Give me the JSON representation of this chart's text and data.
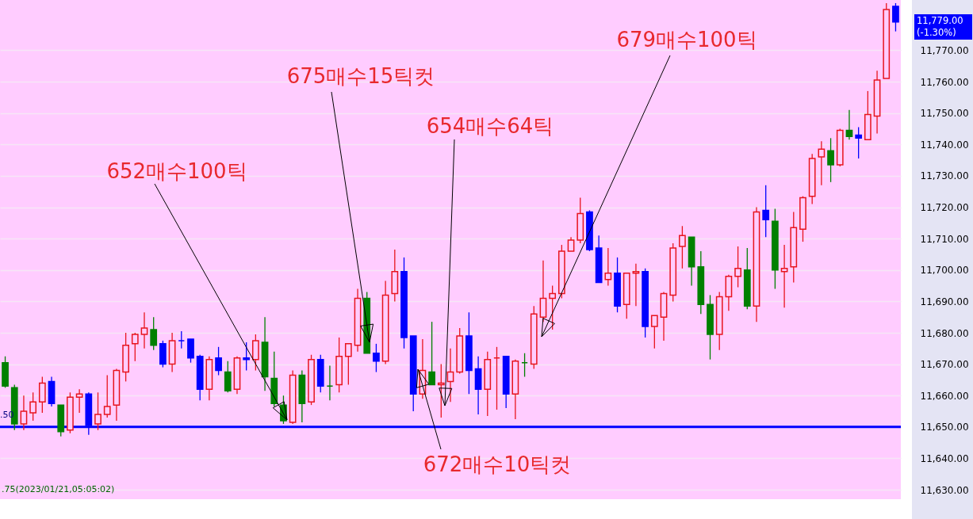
{
  "chart_data": {
    "type": "candlestick",
    "categories": [
      null,
      null,
      null,
      null,
      null,
      null,
      null,
      null,
      null,
      null,
      null,
      null,
      null,
      null,
      null,
      null,
      null,
      null,
      null,
      null,
      null,
      null,
      null,
      null,
      null,
      null,
      null,
      null,
      null,
      null,
      null,
      null,
      null,
      null,
      null,
      null,
      null,
      null,
      null,
      null,
      null,
      null,
      null,
      null,
      null,
      null,
      null,
      null,
      null,
      null,
      null,
      null,
      null,
      null,
      null,
      null,
      null,
      null,
      null,
      null,
      null,
      null,
      null,
      null,
      null,
      null,
      null,
      null,
      null,
      null,
      null,
      null,
      null,
      null,
      null,
      null,
      null,
      null,
      null,
      null,
      null,
      null,
      null,
      null,
      null,
      null,
      null,
      null,
      null,
      null,
      null,
      null,
      null,
      null,
      null,
      null,
      null
    ],
    "ohlc": [
      [
        11670.5,
        11672.5,
        11662.5,
        11663
      ],
      [
        11662.5,
        11663.5,
        11649,
        11651
      ],
      [
        11651,
        11660,
        11649,
        11655
      ],
      [
        11654.5,
        11661,
        11652,
        11658
      ],
      [
        11658,
        11666,
        11654.5,
        11664
      ],
      [
        11664.5,
        11666,
        11656.5,
        11657.5
      ],
      [
        11657,
        11657,
        11647,
        11648.5
      ],
      [
        11649,
        11661,
        11648,
        11659.5
      ],
      [
        11659.5,
        11662,
        11654.5,
        11660.5
      ],
      [
        11660.5,
        11661,
        11647.5,
        11650.5
      ],
      [
        11651,
        11661,
        11649,
        11654
      ],
      [
        11654,
        11666.5,
        11653,
        11656.5
      ],
      [
        11657,
        11668.5,
        11652,
        11668
      ],
      [
        11667.5,
        11680,
        11664.5,
        11676
      ],
      [
        11676.5,
        11680,
        11671,
        11679.5
      ],
      [
        11679.5,
        11686.5,
        11675,
        11681.5
      ],
      [
        11681,
        11685,
        11674.5,
        11676
      ],
      [
        11676.5,
        11677.5,
        11669,
        11670
      ],
      [
        11670,
        11680,
        11667.5,
        11677.5
      ],
      [
        11677.5,
        11680.5,
        11675,
        11677.5
      ],
      [
        11678,
        11678,
        11670.5,
        11672
      ],
      [
        11672.5,
        11673,
        11658.5,
        11662
      ],
      [
        11662,
        11672.5,
        11658.5,
        11671.5
      ],
      [
        11672,
        11675.5,
        11666.5,
        11668
      ],
      [
        11667.5,
        11671,
        11661,
        11661.5
      ],
      [
        11662,
        11672.5,
        11660.5,
        11672
      ],
      [
        11672,
        11677,
        11668,
        11671.5
      ],
      [
        11671.5,
        11679.5,
        11668,
        11677.5
      ],
      [
        11677,
        11685,
        11661.5,
        11666
      ],
      [
        11665.5,
        11674,
        11656.5,
        11657.5
      ],
      [
        11657,
        11660,
        11651,
        11652
      ],
      [
        11651.5,
        11668,
        11651,
        11666.5
      ],
      [
        11666.5,
        11668,
        11651.5,
        11657.5
      ],
      [
        11658,
        11673,
        11657,
        11671.5
      ],
      [
        11671.5,
        11673,
        11661,
        11663
      ],
      [
        11663,
        11669.5,
        11658.5,
        11663
      ],
      [
        11663.5,
        11678.5,
        11661,
        11672.5
      ],
      [
        11672.5,
        11676.5,
        11663.5,
        11676.5
      ],
      [
        11676,
        11694,
        11674,
        11691
      ],
      [
        11691,
        11693,
        11673.5,
        11673.5
      ],
      [
        11673.5,
        11676.5,
        11667.5,
        11671
      ],
      [
        11671,
        11696.5,
        11670,
        11692
      ],
      [
        11692.5,
        11706.5,
        11690,
        11699.5
      ],
      [
        11699.5,
        11704,
        11675,
        11678.5
      ],
      [
        11679,
        11679,
        11655,
        11660.5
      ],
      [
        11660.5,
        11678,
        11659,
        11668
      ],
      [
        11667.5,
        11683.5,
        11663.5,
        11663.5
      ],
      [
        11663.5,
        11670,
        11653,
        11664
      ],
      [
        11664.5,
        11675,
        11658,
        11667.5
      ],
      [
        11667.5,
        11681.5,
        11667,
        11679
      ],
      [
        11679,
        11686.5,
        11660.5,
        11668
      ],
      [
        11668.5,
        11672.5,
        11654,
        11662
      ],
      [
        11662,
        11674,
        11653.5,
        11671.5
      ],
      [
        11672,
        11675.5,
        11655.5,
        11672
      ],
      [
        11672.5,
        11672.5,
        11656,
        11660.5
      ],
      [
        11660.5,
        11671.5,
        11652.5,
        11671
      ],
      [
        11670.5,
        11673.5,
        11666,
        11670.5
      ],
      [
        11670,
        11688.5,
        11668.5,
        11686
      ],
      [
        11685,
        11703,
        11683.5,
        11691
      ],
      [
        11691,
        11695,
        11681,
        11692.5
      ],
      [
        11692.5,
        11708,
        11691,
        11706
      ],
      [
        11706,
        11710.5,
        11706,
        11709.5
      ],
      [
        11709.5,
        11723,
        11708.5,
        11718
      ],
      [
        11718.5,
        11719,
        11706,
        11706.5
      ],
      [
        11707,
        11711,
        11696,
        11696
      ],
      [
        11697,
        11707,
        11695,
        11699
      ],
      [
        11699,
        11704,
        11686.5,
        11688.5
      ],
      [
        11689,
        11699,
        11684.5,
        11699
      ],
      [
        11699,
        11702,
        11688.5,
        11699.5
      ],
      [
        11699.5,
        11700.5,
        11678.5,
        11682
      ],
      [
        11682,
        11685.5,
        11675,
        11685.5
      ],
      [
        11685,
        11693,
        11677.5,
        11692.5
      ],
      [
        11692,
        11708.5,
        11690,
        11707
      ],
      [
        11707.5,
        11714,
        11700.5,
        11711
      ],
      [
        11710.5,
        11710.5,
        11695,
        11701
      ],
      [
        11701,
        11706,
        11686,
        11689
      ],
      [
        11689,
        11692,
        11671.5,
        11679.5
      ],
      [
        11679.5,
        11693,
        11674.5,
        11691.5
      ],
      [
        11691.5,
        11698.5,
        11687,
        11698
      ],
      [
        11698,
        11707.5,
        11694.5,
        11700.5
      ],
      [
        11700,
        11707,
        11687.5,
        11688.5
      ],
      [
        11688.5,
        11720,
        11683.5,
        11718.5
      ],
      [
        11719,
        11727,
        11710.5,
        11716
      ],
      [
        11715.5,
        11719.5,
        11694,
        11700
      ],
      [
        11699.5,
        11708,
        11688,
        11700.5
      ],
      [
        11701,
        11718.5,
        11696,
        11713.5
      ],
      [
        11713,
        11723.5,
        11709,
        11723
      ],
      [
        11723.5,
        11737,
        11721,
        11735.5
      ],
      [
        11736,
        11741,
        11727,
        11738.5
      ],
      [
        11738,
        11742,
        11728,
        11733.5
      ],
      [
        11733.5,
        11745,
        11733,
        11744.5
      ],
      [
        11744.5,
        11751,
        11741.5,
        11742.5
      ],
      [
        11743,
        11745.5,
        11735.5,
        11742
      ],
      [
        11741.5,
        11757,
        11741.5,
        11749.5
      ],
      [
        11749,
        11763.5,
        11743.5,
        11760.5
      ],
      [
        11761,
        11785,
        11761,
        11783
      ],
      [
        11784,
        11785,
        11776,
        11779
      ]
    ],
    "colors": [
      "#008000",
      "#008000",
      "#e8141e",
      "#e8141e",
      "#e8141e",
      "#0000ff",
      "#008000",
      "#e8141e",
      "#e8141e",
      "#0000ff",
      "#e8141e",
      "#e8141e",
      "#e8141e",
      "#e8141e",
      "#e8141e",
      "#e8141e",
      "#008000",
      "#0000ff",
      "#e8141e",
      "#0000ff",
      "#0000ff",
      "#0000ff",
      "#e8141e",
      "#0000ff",
      "#008000",
      "#e8141e",
      "#0000ff",
      "#e8141e",
      "#008000",
      "#008000",
      "#008000",
      "#e8141e",
      "#008000",
      "#e8141e",
      "#0000ff",
      "#008000",
      "#e8141e",
      "#e8141e",
      "#e8141e",
      "#008000",
      "#0000ff",
      "#e8141e",
      "#e8141e",
      "#0000ff",
      "#0000ff",
      "#e8141e",
      "#008000",
      "#e8141e",
      "#e8141e",
      "#e8141e",
      "#0000ff",
      "#0000ff",
      "#e8141e",
      "#e8141e",
      "#0000ff",
      "#e8141e",
      "#008000",
      "#e8141e",
      "#e8141e",
      "#e8141e",
      "#e8141e",
      "#e8141e",
      "#e8141e",
      "#0000ff",
      "#0000ff",
      "#e8141e",
      "#0000ff",
      "#e8141e",
      "#e8141e",
      "#0000ff",
      "#e8141e",
      "#e8141e",
      "#e8141e",
      "#e8141e",
      "#008000",
      "#008000",
      "#008000",
      "#e8141e",
      "#e8141e",
      "#e8141e",
      "#008000",
      "#e8141e",
      "#0000ff",
      "#008000",
      "#e8141e",
      "#e8141e",
      "#e8141e",
      "#e8141e",
      "#e8141e",
      "#008000",
      "#e8141e",
      "#008000",
      "#0000ff",
      "#e8141e",
      "#e8141e",
      "#e8141e",
      "#0000ff"
    ],
    "ylim": [
      11627,
      11786
    ],
    "yticks": [
      {
        "value": 11630,
        "label": "11,630.00"
      },
      {
        "value": 11640,
        "label": "11,640.00"
      },
      {
        "value": 11650,
        "label": "11,650.00"
      },
      {
        "value": 11660,
        "label": "11,660.00"
      },
      {
        "value": 11670,
        "label": "11,670.00"
      },
      {
        "value": 11680,
        "label": "11,680.00"
      },
      {
        "value": 11690,
        "label": "11,690.00"
      },
      {
        "value": 11700,
        "label": "11,700.00"
      },
      {
        "value": 11710,
        "label": "11,710.00"
      },
      {
        "value": 11720,
        "label": "11,720.00"
      },
      {
        "value": 11730,
        "label": "11,730.00"
      },
      {
        "value": 11740,
        "label": "11,740.00"
      },
      {
        "value": 11750,
        "label": "11,750.00"
      },
      {
        "value": 11760,
        "label": "11,760.00"
      },
      {
        "value": 11770,
        "label": "11,770.00"
      }
    ],
    "ref_lines": [
      {
        "axis": "y",
        "value": 11650,
        "color": "#0000ff"
      }
    ],
    "grid": "y",
    "tick_labels": "y",
    "annotations": [
      "652매수100틱",
      "675매수15틱컷",
      "654매수64틱",
      "672매수10틱컷",
      "679매수100틱",
      "11,779.00",
      "(-1.30%)",
      ".50",
      ".75(2023/01/21,05:05:02)"
    ]
  }
}
